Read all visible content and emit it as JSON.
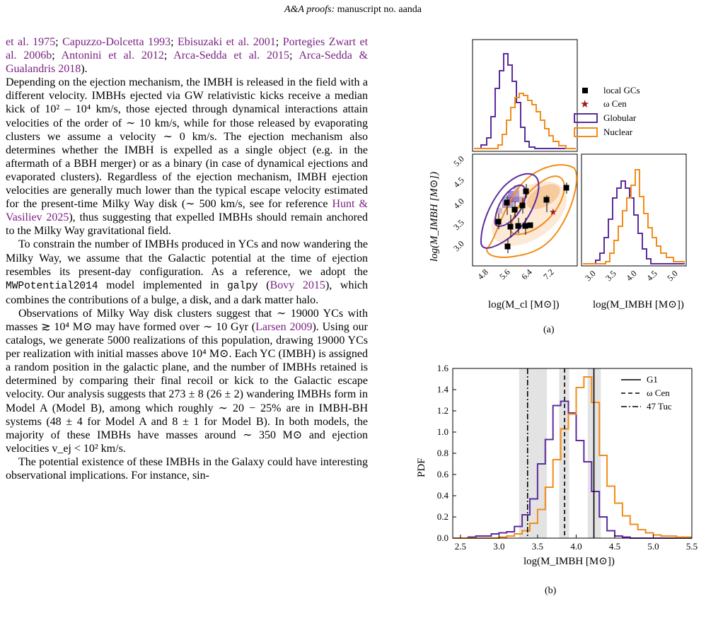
{
  "header": {
    "prefix": "A&A proofs:",
    "rest": " manuscript no. aanda"
  },
  "body": {
    "p1": [
      {
        "t": "et al. 1975",
        "c": 1
      },
      {
        "t": "; "
      },
      {
        "t": "Capuzzo-Dolcetta 1993",
        "c": 1
      },
      {
        "t": "; "
      },
      {
        "t": "Ebisuzaki et al. 2001",
        "c": 1
      },
      {
        "t": "; "
      },
      {
        "t": "Portegies Zwart et al. 2006b",
        "c": 1
      },
      {
        "t": "; "
      },
      {
        "t": "Antonini et al. 2012",
        "c": 1
      },
      {
        "t": "; "
      },
      {
        "t": "Arca-Sedda et al. 2015",
        "c": 1
      },
      {
        "t": "; "
      },
      {
        "t": "Arca-Sedda & Gualandris 2018",
        "c": 1
      },
      {
        "t": ")."
      }
    ],
    "p2": [
      {
        "t": "Depending on the ejection mechanism, the IMBH is released in the field with a different velocity. IMBHs ejected via GW relativistic kicks receive a median kick of 10² – 10⁴ km/s, those ejected through dynamical interactions attain velocities of the order of ∼ 10 km/s, while for those released by evaporating clusters we assume a velocity ∼ 0 km/s. The ejection mechanism also determines whether the IMBH is expelled as a single object (e.g. in the aftermath of a BBH merger) or as a binary (in case of dynamical ejections and evaporated clusters). Regardless of the ejection mechanism, IMBH ejection velocities are generally much lower than the typical escape velocity estimated for the present-time Milky Way disk (∼ 500 km/s, see for reference "
      },
      {
        "t": "Hunt & Vasiliev 2025",
        "c": 1
      },
      {
        "t": "), thus suggesting that expelled IMBHs should remain anchored to the Milky Way gravitational field."
      }
    ],
    "p3": [
      {
        "t": "To constrain the number of IMBHs produced in YCs and now wandering the Milky Way, we assume that the Galactic potential at the time of ejection resembles its present-day configuration. As a reference, we adopt the "
      },
      {
        "t": "MWPotential2014",
        "m": 1
      },
      {
        "t": " model implemented in "
      },
      {
        "t": "galpy",
        "m": 1
      },
      {
        "t": " ("
      },
      {
        "t": "Bovy 2015",
        "c": 1
      },
      {
        "t": "), which combines the contributions of a bulge, a disk, and a dark matter halo."
      }
    ],
    "p4": [
      {
        "t": "Observations of Milky Way disk clusters suggest that ∼ 19000 YCs with masses ≳ 10⁴ M⊙ may have formed over ∼ 10 Gyr ("
      },
      {
        "t": "Larsen 2009",
        "c": 1
      },
      {
        "t": "). Using our catalogs, we generate 5000 realizations of this population, drawing 19000 YCs per realization with initial masses above 10⁴ M⊙. Each YC (IMBH) is assigned a random position in the galactic plane, and the number of IMBHs retained is determined by comparing their final recoil or kick to the Galactic escape velocity. Our analysis suggests that 273 ± 8 (26 ± 2) wandering IMBHs form in Model A (Model B), among which roughly ∼ 20 − 25% are in IMBH-BH systems (48 ± 4 for Model A and 8 ± 1 for Model B). In both models, the majority of these IMBHs have masses around ∼ 350 M⊙ and ejection velocities v_ej < 10² km/s."
      }
    ],
    "p5": [
      {
        "t": "The potential existence of these IMBHs in the Galaxy could have interesting observational implications. For instance, sin-"
      }
    ]
  },
  "figure_a": {
    "caption": "(a)",
    "legend": {
      "local_gcs": "local GCs",
      "omega_cen": "ω Cen",
      "globular": "Globular",
      "nuclear": "Nuclear"
    },
    "xlabel_joint": "log(M_cl [M⊙])",
    "ylabel_joint": "log(M_IMBH [M⊙])",
    "xlabel_marg": "log(M_IMBH [M⊙])",
    "joint_xticks": [
      "4.8",
      "5.6",
      "6.4",
      "7.2"
    ],
    "joint_yticks": [
      "3.0",
      "3.5",
      "4.0",
      "4.5",
      "5.0"
    ],
    "marg_xticks": [
      "3.0",
      "3.5",
      "4.0",
      "4.5",
      "5.0"
    ],
    "colors": {
      "globular": "#5b2c9e",
      "nuclear": "#f28c1a",
      "points": "#000000",
      "omega": "#9b1c1c"
    }
  },
  "chart_data": {
    "type": "line",
    "title": "",
    "xlabel": "log(M_IMBH [M⊙])",
    "ylabel": "PDF",
    "xlim": [
      2.4,
      5.5
    ],
    "ylim": [
      0,
      1.6
    ],
    "xticks": [
      "2.5",
      "3.0",
      "3.5",
      "4.0",
      "4.5",
      "5.0",
      "5.5"
    ],
    "yticks": [
      "0.0",
      "0.2",
      "0.4",
      "0.6",
      "0.8",
      "1.0",
      "1.2",
      "1.4",
      "1.6"
    ],
    "x": [
      2.45,
      2.55,
      2.65,
      2.75,
      2.85,
      2.95,
      3.05,
      3.15,
      3.25,
      3.35,
      3.45,
      3.55,
      3.65,
      3.75,
      3.85,
      3.95,
      4.05,
      4.15,
      4.25,
      4.35,
      4.45,
      4.55,
      4.65,
      4.75,
      4.85,
      4.95,
      5.05,
      5.15,
      5.25,
      5.35,
      5.45
    ],
    "series": [
      {
        "name": "Globular",
        "color": "#5b2c9e",
        "values": [
          0.0,
          0.0,
          0.01,
          0.02,
          0.02,
          0.04,
          0.05,
          0.06,
          0.11,
          0.22,
          0.37,
          0.7,
          0.93,
          1.25,
          1.29,
          1.18,
          0.92,
          0.72,
          0.44,
          0.2,
          0.07,
          0.02,
          0.01,
          0.0,
          0.0,
          0.0,
          0.0,
          0.0,
          0.0,
          0.0,
          0.0
        ]
      },
      {
        "name": "Nuclear",
        "color": "#f28c1a",
        "values": [
          0.0,
          0.0,
          0.0,
          0.0,
          0.0,
          0.0,
          0.01,
          0.02,
          0.04,
          0.07,
          0.14,
          0.27,
          0.48,
          0.74,
          1.03,
          1.17,
          1.42,
          1.52,
          1.28,
          0.78,
          0.49,
          0.33,
          0.21,
          0.13,
          0.08,
          0.05,
          0.03,
          0.02,
          0.02,
          0.01,
          0.01
        ]
      }
    ],
    "vlines": [
      {
        "name": "G1",
        "style": "solid",
        "x": 4.23,
        "band": [
          4.15,
          4.32
        ]
      },
      {
        "name": "ω Cen",
        "style": "dashed",
        "x": 3.85,
        "band": [
          3.78,
          3.91
        ]
      },
      {
        "name": "47 Tuc",
        "style": "dashdot",
        "x": 3.37,
        "band": [
          3.26,
          3.62
        ]
      }
    ],
    "caption": "(b)",
    "legend_position": "top-right"
  }
}
